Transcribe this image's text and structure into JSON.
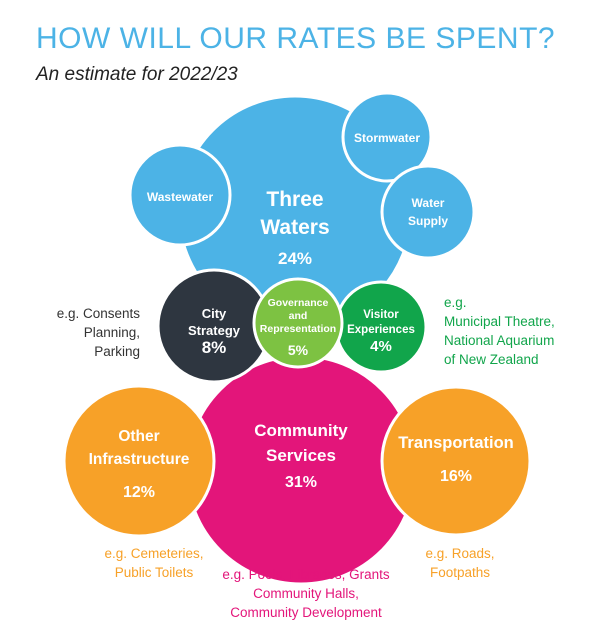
{
  "title": "HOW WILL OUR RATES BE SPENT?",
  "subtitle": "An estimate for 2022/23",
  "colors": {
    "blue": "#4cb3e6",
    "dark": "#2e3640",
    "light_green": "#7dc242",
    "green": "#11a54b",
    "pink": "#e3157a",
    "orange": "#f7a128",
    "text_dark": "#333333"
  },
  "chart_data": {
    "type": "bubble",
    "title": "HOW WILL OUR RATES BE SPENT?",
    "subtitle": "An estimate for 2022/23",
    "unit": "%",
    "categories": [
      {
        "name": [
          "Three",
          "Waters"
        ],
        "value": 24,
        "color": "#4cb3e6",
        "sub_items": [
          "Wastewater",
          [
            "Stormwater"
          ],
          [
            "Water",
            "Supply"
          ]
        ]
      },
      {
        "name": [
          "City",
          "Strategy"
        ],
        "value": 8,
        "color": "#2e3640",
        "example": [
          "e.g. Consents",
          "Planning,",
          "Parking"
        ]
      },
      {
        "name": [
          "Governance",
          "and",
          "Representation"
        ],
        "value": 5,
        "color": "#7dc242"
      },
      {
        "name": [
          "Visitor",
          "Experiences"
        ],
        "value": 4,
        "color": "#11a54b",
        "example": [
          "e.g.",
          "Municipal Theatre,",
          "National Aquarium",
          "of New Zealand"
        ]
      },
      {
        "name": [
          "Other",
          "Infrastructure"
        ],
        "value": 12,
        "color": "#f7a128",
        "example": [
          "e.g. Cemeteries,",
          "Public Toilets"
        ]
      },
      {
        "name": [
          "Community",
          "Services"
        ],
        "value": 31,
        "color": "#e3157a",
        "example": [
          "e.g. Pools, Libraries, Grants",
          "Community Halls,",
          "Community Development"
        ]
      },
      {
        "name": [
          "Transportation"
        ],
        "value": 16,
        "color": "#f7a128",
        "example": [
          "e.g. Roads,",
          "Footpaths"
        ]
      }
    ]
  }
}
